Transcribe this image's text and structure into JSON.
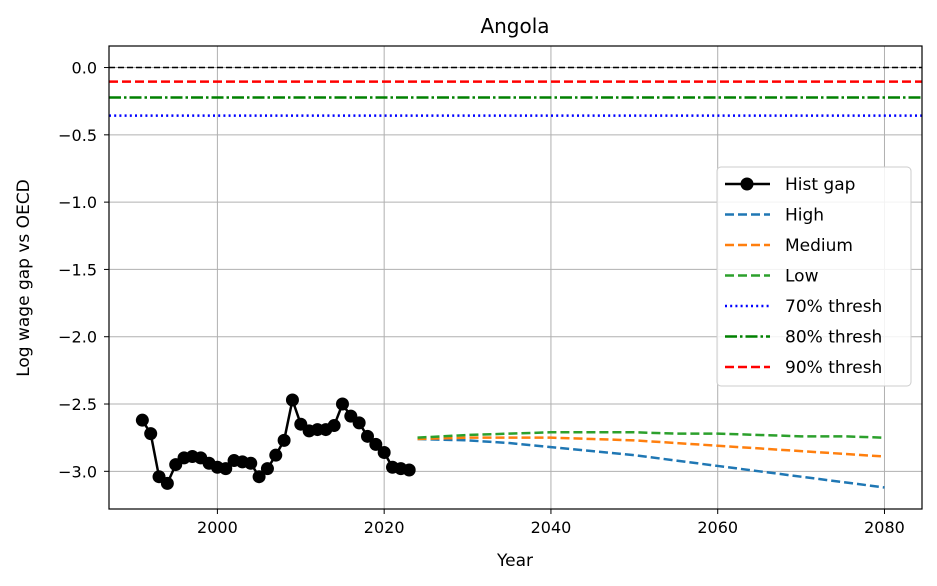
{
  "chart_data": {
    "type": "line",
    "title": "Angola",
    "xlabel": "Year",
    "ylabel": "Log wage gap vs OECD",
    "xlim": [
      1987,
      2084.5
    ],
    "ylim": [
      -3.28,
      0.16
    ],
    "x_ticks": [
      2000,
      2020,
      2040,
      2060,
      2080
    ],
    "y_ticks": [
      0.0,
      -0.5,
      -1.0,
      -1.5,
      -2.0,
      -2.5,
      -3.0
    ],
    "x_tick_labels": [
      "2000",
      "2020",
      "2040",
      "2060",
      "2080"
    ],
    "y_tick_labels": [
      "0.0",
      "−0.5",
      "−1.0",
      "−1.5",
      "−2.0",
      "−2.5",
      "−3.0"
    ],
    "grid": true,
    "legend_position": "center-right",
    "zero_line": {
      "y": 0.0,
      "color": "#000000"
    },
    "thresholds": [
      {
        "name": "70% thresh",
        "y": -0.357,
        "color": "#0000ff",
        "style": "dotted"
      },
      {
        "name": "80% thresh",
        "y": -0.223,
        "color": "#008000",
        "style": "dashdot"
      },
      {
        "name": "90% thresh",
        "y": -0.105,
        "color": "#ff0000",
        "style": "dashed"
      }
    ],
    "series": [
      {
        "name": "Hist gap",
        "color": "#000000",
        "style": "solid-marker",
        "x": [
          1991,
          1992,
          1993,
          1994,
          1995,
          1996,
          1997,
          1998,
          1999,
          2000,
          2001,
          2002,
          2003,
          2004,
          2005,
          2006,
          2007,
          2008,
          2009,
          2010,
          2011,
          2012,
          2013,
          2014,
          2015,
          2016,
          2017,
          2018,
          2019,
          2020,
          2021,
          2022,
          2023
        ],
        "y": [
          -2.62,
          -2.72,
          -3.04,
          -3.09,
          -2.95,
          -2.9,
          -2.89,
          -2.9,
          -2.94,
          -2.97,
          -2.98,
          -2.92,
          -2.93,
          -2.94,
          -3.04,
          -2.98,
          -2.88,
          -2.77,
          -2.47,
          -2.65,
          -2.7,
          -2.69,
          -2.69,
          -2.66,
          -2.5,
          -2.59,
          -2.64,
          -2.74,
          -2.8,
          -2.86,
          -2.97,
          -2.98,
          -2.99
        ]
      },
      {
        "name": "High",
        "color": "#1f77b4",
        "style": "dashed",
        "x": [
          2024,
          2030,
          2035,
          2040,
          2045,
          2050,
          2055,
          2060,
          2065,
          2070,
          2075,
          2080
        ],
        "y": [
          -2.76,
          -2.77,
          -2.79,
          -2.82,
          -2.85,
          -2.88,
          -2.92,
          -2.96,
          -3.0,
          -3.04,
          -3.08,
          -3.12
        ]
      },
      {
        "name": "Medium",
        "color": "#ff7f0e",
        "style": "dashed",
        "x": [
          2024,
          2030,
          2035,
          2040,
          2045,
          2050,
          2055,
          2060,
          2065,
          2070,
          2075,
          2080
        ],
        "y": [
          -2.76,
          -2.75,
          -2.75,
          -2.75,
          -2.76,
          -2.77,
          -2.79,
          -2.81,
          -2.83,
          -2.85,
          -2.87,
          -2.89
        ]
      },
      {
        "name": "Low",
        "color": "#2ca02c",
        "style": "dashed",
        "x": [
          2024,
          2030,
          2035,
          2040,
          2045,
          2050,
          2055,
          2060,
          2065,
          2070,
          2075,
          2080
        ],
        "y": [
          -2.75,
          -2.73,
          -2.72,
          -2.71,
          -2.71,
          -2.71,
          -2.72,
          -2.72,
          -2.73,
          -2.74,
          -2.74,
          -2.75
        ]
      }
    ],
    "legend": [
      "Hist gap",
      "High",
      "Medium",
      "Low",
      "70% thresh",
      "80% thresh",
      "90% thresh"
    ]
  }
}
